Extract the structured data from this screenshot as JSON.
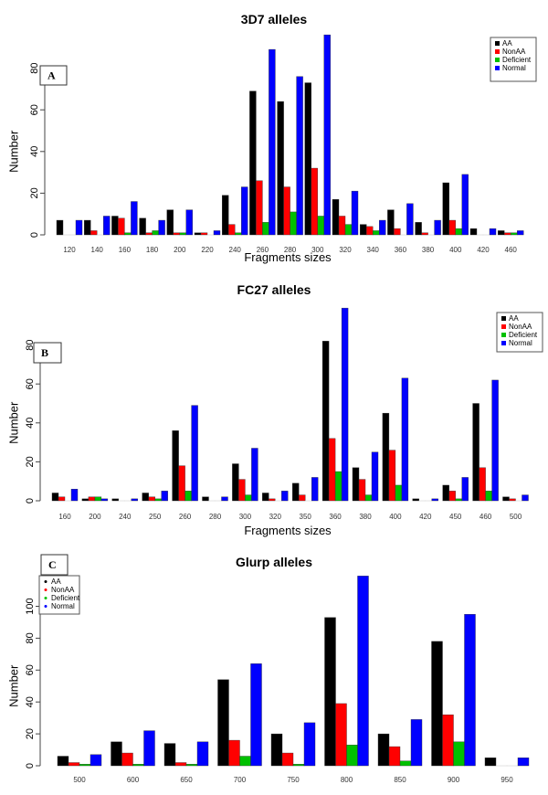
{
  "series_colors": {
    "AA": "#000000",
    "NonAA": "#ff0000",
    "Deficient": "#00c000",
    "Normal": "#0000ff"
  },
  "chart_data": [
    {
      "type": "bar",
      "panel": "A",
      "title": "3D7 alleles",
      "xlabel": "Fragments sizes",
      "ylabel": "Number",
      "ylim": [
        0,
        96
      ],
      "yticks": [
        "0",
        "20",
        "40",
        "60",
        "80"
      ],
      "legend_position": "top-right",
      "categories": [
        "120",
        "140",
        "160",
        "180",
        "200",
        "220",
        "240",
        "260",
        "280",
        "300",
        "320",
        "340",
        "360",
        "380",
        "400",
        "420",
        "460"
      ],
      "series": [
        {
          "name": "AA",
          "values": [
            7,
            7,
            9,
            8,
            12,
            1,
            19,
            69,
            64,
            73,
            17,
            5,
            12,
            6,
            25,
            3,
            2
          ]
        },
        {
          "name": "NonAA",
          "values": [
            0,
            2,
            8,
            1,
            1,
            1,
            5,
            26,
            23,
            32,
            9,
            4,
            3,
            1,
            7,
            0,
            1
          ]
        },
        {
          "name": "Deficient",
          "values": [
            0,
            0,
            1,
            2,
            1,
            0,
            1,
            6,
            11,
            9,
            5,
            2,
            0,
            0,
            3,
            0,
            1
          ]
        },
        {
          "name": "Normal",
          "values": [
            7,
            9,
            16,
            7,
            12,
            2,
            23,
            89,
            76,
            96,
            21,
            7,
            15,
            7,
            29,
            3,
            2
          ]
        }
      ]
    },
    {
      "type": "bar",
      "panel": "B",
      "title": "FC27 alleles",
      "xlabel": "Fragments sizes",
      "ylabel": "Number",
      "ylim": [
        0,
        99
      ],
      "yticks": [
        "0",
        "20",
        "40",
        "60",
        "80"
      ],
      "legend_position": "top-right",
      "categories": [
        "160",
        "200",
        "240",
        "250",
        "260",
        "280",
        "300",
        "320",
        "350",
        "360",
        "380",
        "400",
        "420",
        "450",
        "460",
        "500"
      ],
      "series": [
        {
          "name": "AA",
          "values": [
            4,
            1,
            1,
            4,
            36,
            2,
            19,
            4,
            9,
            82,
            17,
            45,
            1,
            8,
            50,
            2
          ]
        },
        {
          "name": "NonAA",
          "values": [
            2,
            2,
            0,
            2,
            18,
            0,
            11,
            1,
            3,
            32,
            11,
            26,
            0,
            5,
            17,
            1
          ]
        },
        {
          "name": "Deficient",
          "values": [
            0,
            2,
            0,
            1,
            5,
            0,
            3,
            0,
            0,
            15,
            3,
            8,
            0,
            1,
            5,
            0
          ]
        },
        {
          "name": "Normal",
          "values": [
            6,
            1,
            1,
            5,
            49,
            2,
            27,
            5,
            12,
            99,
            25,
            63,
            1,
            12,
            62,
            3
          ]
        }
      ]
    },
    {
      "type": "bar",
      "panel": "C",
      "title": "Glurp alleles",
      "xlabel": "",
      "ylabel": "Number",
      "ylim": [
        0,
        119
      ],
      "yticks": [
        "0",
        "20",
        "40",
        "60",
        "80",
        "100"
      ],
      "legend_position": "top-left",
      "categories": [
        "500",
        "600",
        "650",
        "700",
        "750",
        "800",
        "850",
        "900",
        "950"
      ],
      "series": [
        {
          "name": "AA",
          "values": [
            6,
            15,
            14,
            54,
            20,
            93,
            20,
            78,
            5
          ]
        },
        {
          "name": "NonAA",
          "values": [
            2,
            8,
            2,
            16,
            8,
            39,
            12,
            32,
            0
          ]
        },
        {
          "name": "Deficient",
          "values": [
            1,
            1,
            1,
            6,
            1,
            13,
            3,
            15,
            0
          ]
        },
        {
          "name": "Normal",
          "values": [
            7,
            22,
            15,
            64,
            27,
            119,
            29,
            95,
            5
          ]
        }
      ]
    }
  ]
}
